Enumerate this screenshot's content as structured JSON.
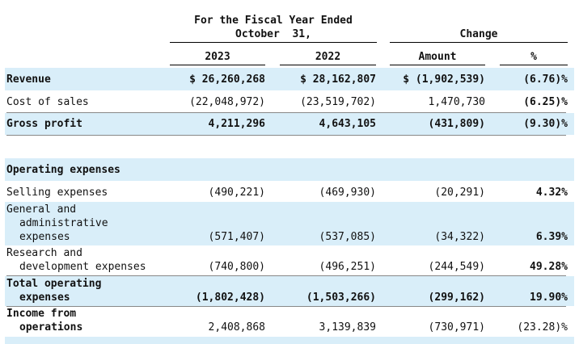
{
  "header": {
    "fiscal_line1": "For the Fiscal Year Ended",
    "fiscal_line2": "October  31,",
    "change": "Change",
    "col_2023": "2023",
    "col_2022": "2022",
    "col_amount": "Amount",
    "col_pct": "%"
  },
  "rows": {
    "revenue": {
      "label": "Revenue",
      "v2023": "$ 26,260,268",
      "v2022": "$ 28,162,807",
      "amount": "$ (1,902,539)",
      "pct": "(6.76)%"
    },
    "cost_of_sales": {
      "label": "Cost of sales",
      "v2023": "(22,048,972)",
      "v2022": "(23,519,702)",
      "amount": "1,470,730",
      "pct": "(6.25)%"
    },
    "gross_profit": {
      "label": "Gross profit",
      "v2023": "4,211,296",
      "v2022": "4,643,105",
      "amount": "(431,809)",
      "pct": "(9.30)%"
    },
    "operating_expenses": {
      "label": "Operating expenses"
    },
    "selling": {
      "label": "Selling expenses",
      "v2023": "(490,221)",
      "v2022": "(469,930)",
      "amount": "(20,291)",
      "pct": "4.32%"
    },
    "g_and_a": {
      "label_l1": "General and",
      "label_l2": "administrative",
      "label_l3": "expenses",
      "v2023": "(571,407)",
      "v2022": "(537,085)",
      "amount": "(34,322)",
      "pct": "6.39%"
    },
    "r_and_d": {
      "label_l1": "Research and",
      "label_l2": "development expenses",
      "v2023": "(740,800)",
      "v2022": "(496,251)",
      "amount": "(244,549)",
      "pct": "49.28%"
    },
    "total_opex": {
      "label_l1": "Total operating",
      "label_l2": "expenses",
      "v2023": "(1,802,428)",
      "v2022": "(1,503,266)",
      "amount": "(299,162)",
      "pct": "19.90%"
    },
    "income_ops": {
      "label_l1": "Income from",
      "label_l2": "operations",
      "v2023": "2,408,868",
      "v2022": "3,139,839",
      "amount": "(730,971)",
      "pct": "(23.28)%"
    }
  }
}
